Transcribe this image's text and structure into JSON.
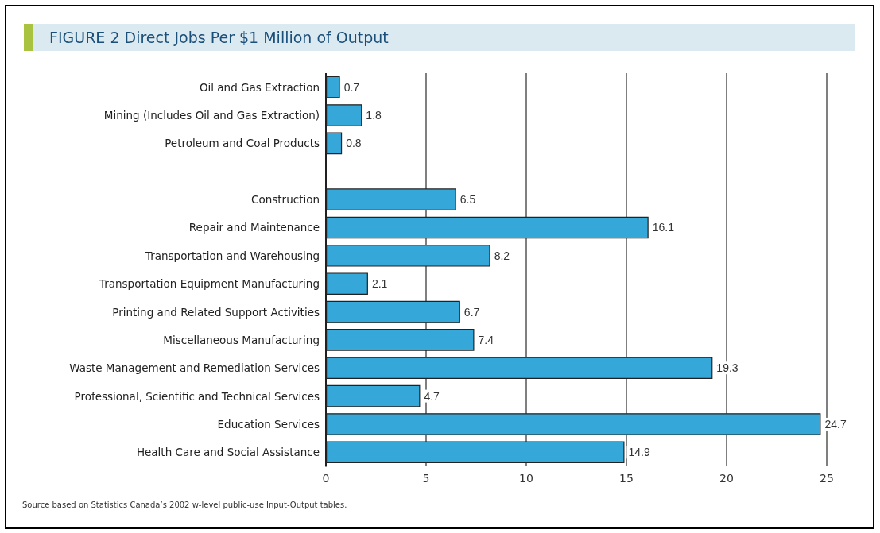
{
  "chart_data": {
    "type": "bar",
    "orientation": "horizontal",
    "title": "FIGURE 2  Direct Jobs Per $1 Million of Output",
    "categories": [
      "Oil and Gas Extraction",
      "Mining (Includes Oil and Gas Extraction)",
      "Petroleum and Coal Products",
      null,
      "Construction",
      "Repair and Maintenance",
      "Transportation and Warehousing",
      "Transportation Equipment Manufacturing",
      "Printing and Related Support Activities",
      "Miscellaneous Manufacturing",
      "Waste Management and Remediation Services",
      "Professional, Scientific and Technical Services",
      "Education Services",
      "Health Care and Social Assistance"
    ],
    "values": [
      0.7,
      1.8,
      0.8,
      null,
      6.5,
      16.1,
      8.2,
      2.1,
      6.7,
      7.4,
      19.3,
      4.7,
      24.7,
      14.9
    ],
    "color": "#35a7d8",
    "xlim": [
      0,
      25
    ],
    "xticks": [
      0,
      5,
      10,
      15,
      20,
      25
    ],
    "grid": "x",
    "data_labels": true,
    "annotations": [
      "Source  based on Statistics Canada’s 2002 w-level public-use Input-Output tables."
    ]
  }
}
